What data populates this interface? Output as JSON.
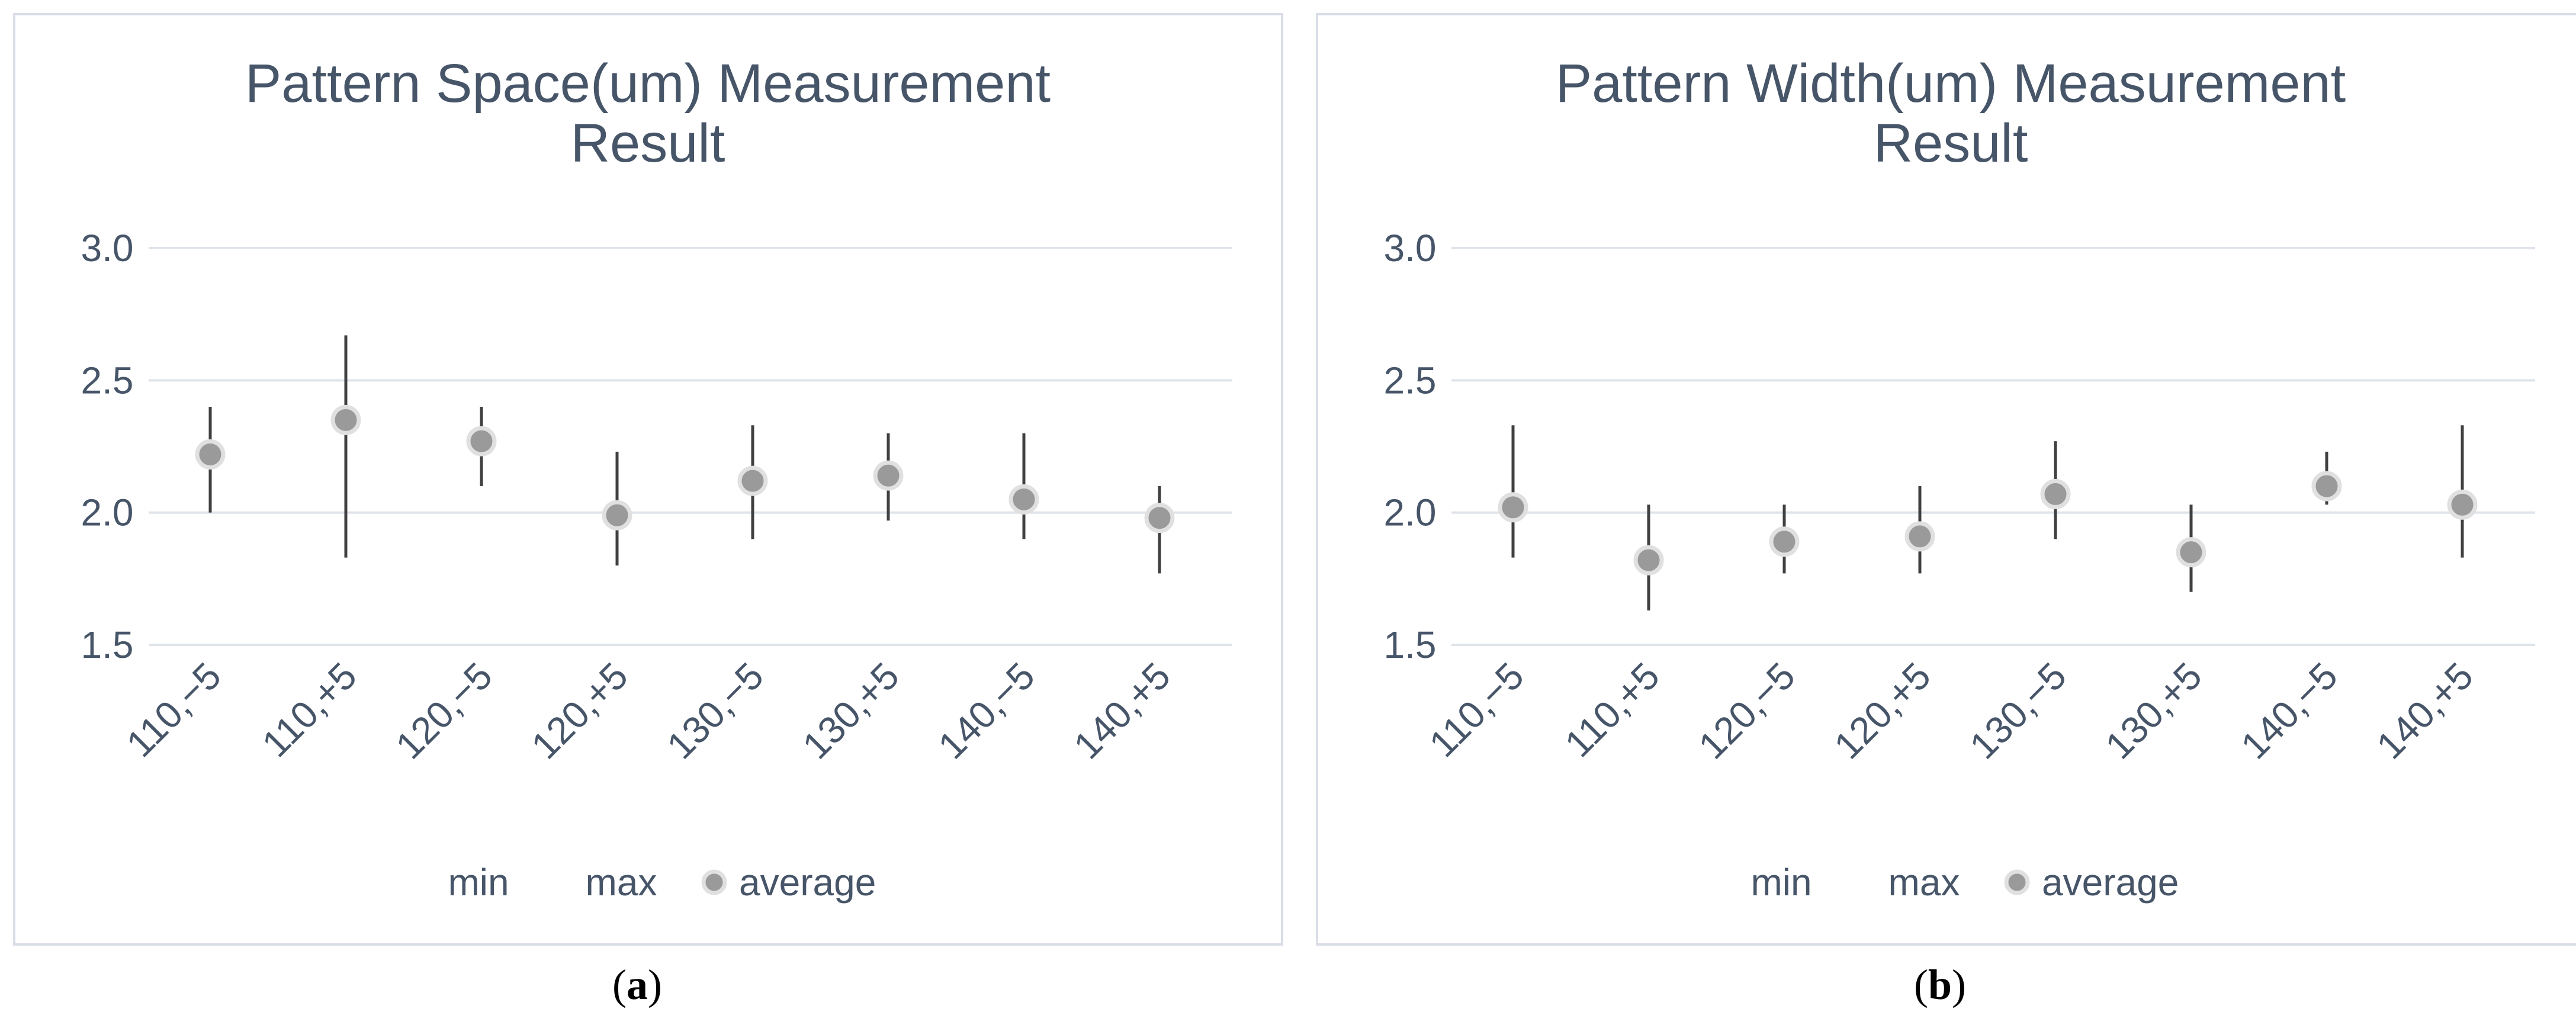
{
  "chart_data": [
    {
      "type": "scatter",
      "title_lines": [
        "Pattern Space(um) Measurement",
        "Result"
      ],
      "categories": [
        "110,−5",
        "110,+5",
        "120,−5",
        "120,+5",
        "130,−5",
        "130,+5",
        "140,−5",
        "140,+5"
      ],
      "series": [
        {
          "name": "min",
          "values": [
            2.0,
            1.83,
            2.1,
            1.8,
            1.9,
            1.97,
            1.9,
            1.77
          ]
        },
        {
          "name": "max",
          "values": [
            2.4,
            2.67,
            2.4,
            2.23,
            2.33,
            2.3,
            2.3,
            2.1
          ]
        },
        {
          "name": "average",
          "values": [
            2.22,
            2.35,
            2.27,
            1.99,
            2.12,
            2.14,
            2.05,
            1.98
          ]
        }
      ],
      "yticks": [
        "3.0",
        "2.5",
        "2.0",
        "1.5"
      ],
      "ylim": [
        1.5,
        3.0
      ],
      "grid": true,
      "legend_position": "bottom",
      "caption_label": "a"
    },
    {
      "type": "scatter",
      "title_lines": [
        "Pattern Width(um) Measurement",
        "Result"
      ],
      "categories": [
        "110,−5",
        "110,+5",
        "120,−5",
        "120,+5",
        "130,−5",
        "130,+5",
        "140,−5",
        "140,+5"
      ],
      "series": [
        {
          "name": "min",
          "values": [
            1.83,
            1.63,
            1.77,
            1.77,
            1.9,
            1.7,
            2.03,
            1.83
          ]
        },
        {
          "name": "max",
          "values": [
            2.33,
            2.03,
            2.03,
            2.1,
            2.27,
            2.03,
            2.23,
            2.33
          ]
        },
        {
          "name": "average",
          "values": [
            2.02,
            1.82,
            1.89,
            1.91,
            2.07,
            1.85,
            2.1,
            2.03
          ]
        }
      ],
      "yticks": [
        "3.0",
        "2.5",
        "2.0",
        "1.5"
      ],
      "ylim": [
        1.5,
        3.0
      ],
      "grid": true,
      "legend_position": "bottom",
      "caption_label": "b"
    }
  ],
  "legend": {
    "min": "min",
    "max": "max",
    "average": "average"
  },
  "colors": {
    "whisker": "#404040",
    "dot": "#9a9a9a",
    "dot_outline": "#e0e0e0",
    "grid": "#dfe3ea",
    "text": "#475569"
  }
}
